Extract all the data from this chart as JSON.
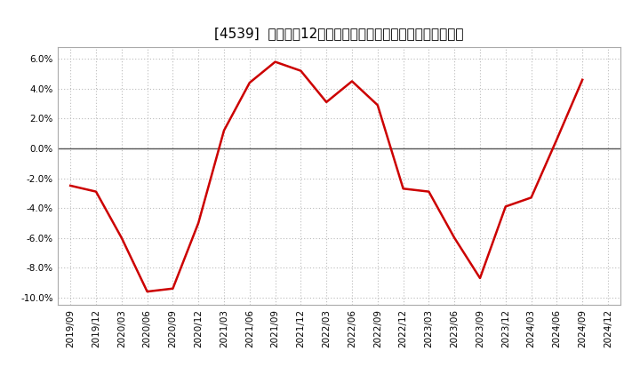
{
  "title": "[4539]  売上高の12か月移動合計の対前年同期増減率の推移",
  "x_labels": [
    "2019/09",
    "2019/12",
    "2020/03",
    "2020/06",
    "2020/09",
    "2020/12",
    "2021/03",
    "2021/06",
    "2021/09",
    "2021/12",
    "2022/03",
    "2022/06",
    "2022/09",
    "2022/12",
    "2023/03",
    "2023/06",
    "2023/09",
    "2023/12",
    "2024/03",
    "2024/06",
    "2024/09",
    "2024/12"
  ],
  "values": [
    -0.025,
    -0.029,
    -0.06,
    -0.096,
    -0.094,
    -0.05,
    0.012,
    0.044,
    0.058,
    0.052,
    0.031,
    0.045,
    0.029,
    -0.027,
    -0.029,
    -0.06,
    -0.087,
    -0.039,
    -0.033,
    0.006,
    0.046,
    null
  ],
  "line_color": "#cc0000",
  "line_width": 1.8,
  "ylim": [
    -0.105,
    0.068
  ],
  "yticks": [
    -0.1,
    -0.08,
    -0.06,
    -0.04,
    -0.02,
    0.0,
    0.02,
    0.04,
    0.06
  ],
  "background_color": "#ffffff",
  "plot_area_color": "#ffffff",
  "grid_color": "#bbbbbb",
  "zero_line_color": "#555555",
  "title_fontsize": 11,
  "tick_fontsize": 7.5
}
